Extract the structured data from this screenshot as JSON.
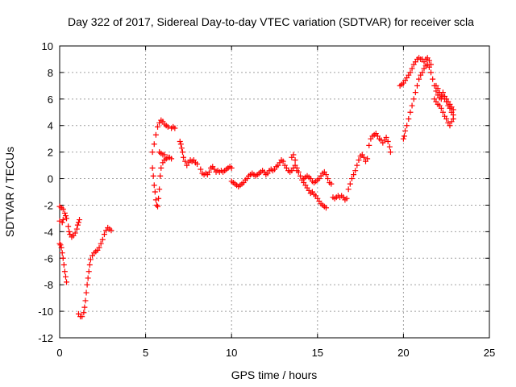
{
  "chart_data": {
    "type": "scatter",
    "title": "Day 322 of 2017, Sidereal Day-to-day VTEC variation (SDTVAR) for receiver scla",
    "xlabel": "GPS time / hours",
    "ylabel": "SDTVAR / TECUs",
    "xlim": [
      0,
      25
    ],
    "ylim": [
      -12,
      10
    ],
    "xticks": [
      0,
      5,
      10,
      15,
      20,
      25
    ],
    "yticks": [
      -12,
      -10,
      -8,
      -6,
      -4,
      -2,
      0,
      2,
      4,
      6,
      8,
      10
    ],
    "grid": true,
    "legend": "none",
    "marker": "+",
    "color": "#ff0000",
    "series": [
      {
        "points": [
          [
            0.0,
            -2.1
          ],
          [
            0.1,
            -2.2
          ],
          [
            0.2,
            -2.3
          ],
          [
            0.3,
            -2.6
          ],
          [
            0.35,
            -2.8
          ],
          [
            0.4,
            -3.0
          ],
          [
            0.2,
            -3.1
          ],
          [
            0.0,
            -3.2
          ],
          [
            0.15,
            -3.3
          ],
          [
            0.5,
            -3.6
          ],
          [
            0.55,
            -4.0
          ],
          [
            0.6,
            -4.2
          ],
          [
            0.7,
            -4.4
          ],
          [
            0.8,
            -4.3
          ],
          [
            0.9,
            -4.1
          ],
          [
            1.0,
            -3.8
          ],
          [
            1.05,
            -3.5
          ],
          [
            1.1,
            -3.3
          ],
          [
            1.15,
            -3.1
          ],
          [
            0.0,
            -4.9
          ],
          [
            0.05,
            -5.0
          ],
          [
            0.1,
            -5.2
          ],
          [
            0.15,
            -5.6
          ],
          [
            0.2,
            -6.0
          ],
          [
            0.25,
            -6.5
          ],
          [
            0.3,
            -7.0
          ],
          [
            0.35,
            -7.4
          ],
          [
            0.4,
            -7.8
          ],
          [
            1.1,
            -10.2
          ],
          [
            1.2,
            -10.4
          ],
          [
            1.3,
            -10.4
          ],
          [
            1.4,
            -10.1
          ],
          [
            1.45,
            -9.7
          ],
          [
            1.5,
            -9.2
          ],
          [
            1.55,
            -8.6
          ],
          [
            1.6,
            -8.0
          ],
          [
            1.65,
            -7.5
          ],
          [
            1.7,
            -7.0
          ],
          [
            1.75,
            -6.5
          ],
          [
            1.8,
            -6.1
          ],
          [
            1.9,
            -5.8
          ],
          [
            2.0,
            -5.6
          ],
          [
            2.1,
            -5.5
          ],
          [
            2.2,
            -5.4
          ],
          [
            2.3,
            -5.2
          ],
          [
            2.4,
            -4.9
          ],
          [
            2.5,
            -4.6
          ],
          [
            2.6,
            -4.2
          ],
          [
            2.7,
            -3.9
          ],
          [
            2.8,
            -3.7
          ],
          [
            2.9,
            -3.8
          ],
          [
            3.0,
            -3.9
          ],
          [
            5.4,
            0.8
          ],
          [
            5.45,
            0.2
          ],
          [
            5.5,
            -0.5
          ],
          [
            5.55,
            -1.0
          ],
          [
            5.6,
            -1.6
          ],
          [
            5.65,
            -2.0
          ],
          [
            5.7,
            -2.1
          ],
          [
            5.75,
            -1.5
          ],
          [
            5.8,
            -0.8
          ],
          [
            5.85,
            0.2
          ],
          [
            5.9,
            0.8
          ],
          [
            6.0,
            1.2
          ],
          [
            6.1,
            1.4
          ],
          [
            6.2,
            1.5
          ],
          [
            6.3,
            1.6
          ],
          [
            6.4,
            1.6
          ],
          [
            6.5,
            1.5
          ],
          [
            5.4,
            2.0
          ],
          [
            5.5,
            2.6
          ],
          [
            5.6,
            3.3
          ],
          [
            5.7,
            3.9
          ],
          [
            5.8,
            4.2
          ],
          [
            5.9,
            4.4
          ],
          [
            6.0,
            4.3
          ],
          [
            6.1,
            4.1
          ],
          [
            6.2,
            4.0
          ],
          [
            6.3,
            3.9
          ],
          [
            6.5,
            3.8
          ],
          [
            6.6,
            3.9
          ],
          [
            6.7,
            3.8
          ],
          [
            5.8,
            2.0
          ],
          [
            5.9,
            1.9
          ],
          [
            6.0,
            1.8
          ],
          [
            6.1,
            1.8
          ],
          [
            7.0,
            2.8
          ],
          [
            7.05,
            2.6
          ],
          [
            7.1,
            2.3
          ],
          [
            7.15,
            2.0
          ],
          [
            7.2,
            1.6
          ],
          [
            7.3,
            1.3
          ],
          [
            7.4,
            1.0
          ],
          [
            7.5,
            1.2
          ],
          [
            7.6,
            1.4
          ],
          [
            7.7,
            1.3
          ],
          [
            7.8,
            1.4
          ],
          [
            7.9,
            1.2
          ],
          [
            8.0,
            1.1
          ],
          [
            8.2,
            0.7
          ],
          [
            8.3,
            0.4
          ],
          [
            8.4,
            0.3
          ],
          [
            8.5,
            0.4
          ],
          [
            8.6,
            0.3
          ],
          [
            8.7,
            0.5
          ],
          [
            8.8,
            0.8
          ],
          [
            8.9,
            0.9
          ],
          [
            9.0,
            0.7
          ],
          [
            9.1,
            0.5
          ],
          [
            9.2,
            0.6
          ],
          [
            9.3,
            0.5
          ],
          [
            9.4,
            0.6
          ],
          [
            9.5,
            0.5
          ],
          [
            9.6,
            0.6
          ],
          [
            9.7,
            0.7
          ],
          [
            9.8,
            0.8
          ],
          [
            9.9,
            0.9
          ],
          [
            10.0,
            0.8
          ],
          [
            10.0,
            -0.2
          ],
          [
            10.1,
            -0.3
          ],
          [
            10.2,
            -0.4
          ],
          [
            10.3,
            -0.5
          ],
          [
            10.4,
            -0.6
          ],
          [
            10.5,
            -0.5
          ],
          [
            10.6,
            -0.4
          ],
          [
            10.7,
            -0.3
          ],
          [
            10.8,
            -0.1
          ],
          [
            10.9,
            0.0
          ],
          [
            11.0,
            0.2
          ],
          [
            11.1,
            0.3
          ],
          [
            11.2,
            0.4
          ],
          [
            11.3,
            0.3
          ],
          [
            11.4,
            0.2
          ],
          [
            11.5,
            0.3
          ],
          [
            11.6,
            0.4
          ],
          [
            11.7,
            0.5
          ],
          [
            11.8,
            0.6
          ],
          [
            11.9,
            0.5
          ],
          [
            12.0,
            0.3
          ],
          [
            12.1,
            0.4
          ],
          [
            12.2,
            0.6
          ],
          [
            12.3,
            0.7
          ],
          [
            12.4,
            0.6
          ],
          [
            12.5,
            0.7
          ],
          [
            12.6,
            0.9
          ],
          [
            12.7,
            1.0
          ],
          [
            12.8,
            1.2
          ],
          [
            12.9,
            1.4
          ],
          [
            13.0,
            1.3
          ],
          [
            13.1,
            1.0
          ],
          [
            13.2,
            0.8
          ],
          [
            13.3,
            0.6
          ],
          [
            13.4,
            0.5
          ],
          [
            13.5,
            0.6
          ],
          [
            13.6,
            0.8
          ],
          [
            13.7,
            1.0
          ],
          [
            13.8,
            0.8
          ],
          [
            13.9,
            0.5
          ],
          [
            14.0,
            0.2
          ],
          [
            14.1,
            -0.1
          ],
          [
            14.2,
            -0.3
          ],
          [
            14.3,
            -0.5
          ],
          [
            14.4,
            -0.7
          ],
          [
            14.5,
            -0.9
          ],
          [
            14.6,
            -1.1
          ],
          [
            14.7,
            -1.0
          ],
          [
            14.8,
            -1.2
          ],
          [
            14.9,
            -1.3
          ],
          [
            15.0,
            -1.5
          ],
          [
            15.1,
            -1.7
          ],
          [
            15.2,
            -1.9
          ],
          [
            15.3,
            -2.0
          ],
          [
            15.4,
            -2.1
          ],
          [
            15.5,
            -2.2
          ],
          [
            13.5,
            1.6
          ],
          [
            13.6,
            1.8
          ],
          [
            13.7,
            1.4
          ],
          [
            13.8,
            0.6
          ],
          [
            14.2,
            0.0
          ],
          [
            14.3,
            0.1
          ],
          [
            14.4,
            0.2
          ],
          [
            14.5,
            0.1
          ],
          [
            14.6,
            0.0
          ],
          [
            14.7,
            -0.2
          ],
          [
            14.8,
            -0.3
          ],
          [
            14.9,
            -0.2
          ],
          [
            15.0,
            -0.1
          ],
          [
            15.1,
            0.0
          ],
          [
            15.2,
            0.2
          ],
          [
            15.3,
            0.4
          ],
          [
            15.4,
            0.5
          ],
          [
            15.5,
            0.3
          ],
          [
            15.6,
            0.0
          ],
          [
            15.7,
            -0.3
          ],
          [
            15.8,
            -0.4
          ],
          [
            15.9,
            -1.4
          ],
          [
            16.0,
            -1.5
          ],
          [
            16.1,
            -1.4
          ],
          [
            16.2,
            -1.3
          ],
          [
            16.3,
            -1.4
          ],
          [
            16.4,
            -1.3
          ],
          [
            16.5,
            -1.4
          ],
          [
            16.6,
            -1.6
          ],
          [
            16.7,
            -1.5
          ],
          [
            16.8,
            -0.8
          ],
          [
            16.9,
            -0.4
          ],
          [
            17.0,
            0.0
          ],
          [
            17.1,
            0.3
          ],
          [
            17.2,
            0.6
          ],
          [
            17.3,
            1.0
          ],
          [
            17.4,
            1.4
          ],
          [
            17.5,
            1.7
          ],
          [
            17.6,
            1.8
          ],
          [
            17.7,
            1.6
          ],
          [
            17.8,
            1.3
          ],
          [
            17.9,
            1.5
          ],
          [
            18.0,
            2.5
          ],
          [
            18.1,
            3.0
          ],
          [
            18.2,
            3.2
          ],
          [
            18.3,
            3.3
          ],
          [
            18.4,
            3.4
          ],
          [
            18.5,
            3.2
          ],
          [
            18.6,
            3.0
          ],
          [
            18.7,
            2.9
          ],
          [
            18.8,
            2.7
          ],
          [
            18.9,
            2.9
          ],
          [
            19.0,
            3.1
          ],
          [
            19.1,
            2.8
          ],
          [
            19.2,
            2.4
          ],
          [
            19.25,
            2.0
          ],
          [
            19.8,
            7.0
          ],
          [
            19.9,
            7.1
          ],
          [
            20.0,
            7.2
          ],
          [
            20.1,
            7.4
          ],
          [
            20.2,
            7.6
          ],
          [
            20.3,
            7.8
          ],
          [
            20.4,
            8.0
          ],
          [
            20.5,
            8.3
          ],
          [
            20.6,
            8.6
          ],
          [
            20.7,
            8.8
          ],
          [
            20.8,
            9.0
          ],
          [
            20.9,
            9.1
          ],
          [
            21.0,
            9.0
          ],
          [
            21.1,
            9.0
          ],
          [
            21.2,
            8.8
          ],
          [
            21.3,
            9.0
          ],
          [
            21.4,
            9.1
          ],
          [
            21.5,
            8.9
          ],
          [
            21.6,
            8.6
          ],
          [
            20.0,
            3.0
          ],
          [
            20.05,
            3.2
          ],
          [
            20.1,
            3.6
          ],
          [
            20.2,
            4.0
          ],
          [
            20.3,
            4.5
          ],
          [
            20.4,
            5.0
          ],
          [
            20.5,
            5.5
          ],
          [
            20.6,
            6.0
          ],
          [
            20.7,
            6.5
          ],
          [
            20.8,
            7.0
          ],
          [
            20.9,
            7.5
          ],
          [
            21.0,
            7.8
          ],
          [
            21.1,
            8.0
          ],
          [
            21.2,
            8.3
          ],
          [
            21.3,
            8.5
          ],
          [
            21.4,
            8.6
          ],
          [
            21.5,
            8.4
          ],
          [
            21.6,
            8.0
          ],
          [
            21.7,
            7.5
          ],
          [
            21.8,
            7.0
          ],
          [
            21.9,
            6.6
          ],
          [
            22.0,
            6.3
          ],
          [
            22.1,
            6.1
          ],
          [
            22.2,
            6.0
          ],
          [
            22.3,
            6.2
          ],
          [
            22.4,
            6.0
          ],
          [
            22.5,
            5.8
          ],
          [
            22.6,
            5.5
          ],
          [
            22.7,
            5.3
          ],
          [
            22.8,
            5.0
          ],
          [
            22.9,
            4.8
          ],
          [
            21.8,
            6.0
          ],
          [
            21.9,
            5.8
          ],
          [
            22.0,
            5.6
          ],
          [
            22.1,
            5.5
          ],
          [
            22.2,
            5.3
          ],
          [
            22.3,
            5.0
          ],
          [
            22.4,
            4.7
          ],
          [
            22.5,
            4.5
          ],
          [
            22.6,
            4.2
          ],
          [
            22.7,
            4.0
          ],
          [
            22.8,
            4.3
          ],
          [
            22.9,
            4.5
          ],
          [
            21.9,
            7.0
          ],
          [
            22.0,
            6.8
          ],
          [
            22.1,
            6.5
          ],
          [
            22.2,
            6.3
          ],
          [
            22.3,
            6.5
          ],
          [
            22.4,
            6.2
          ],
          [
            22.5,
            6.0
          ],
          [
            22.6,
            5.8
          ],
          [
            22.7,
            5.6
          ],
          [
            22.8,
            5.4
          ],
          [
            22.9,
            5.2
          ]
        ]
      }
    ]
  }
}
